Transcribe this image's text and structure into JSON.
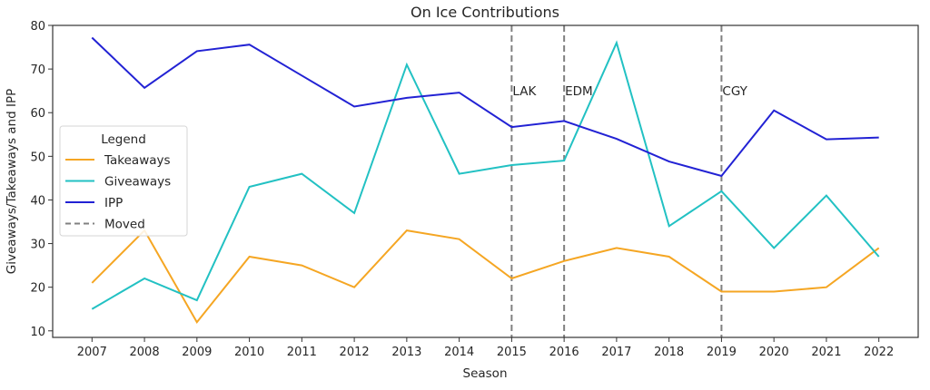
{
  "chart_data": {
    "type": "line",
    "title": "On Ice Contributions",
    "xlabel": "Season",
    "ylabel": "Giveaways/Takeaways and IPP",
    "x": [
      2007,
      2008,
      2009,
      2010,
      2011,
      2012,
      2013,
      2014,
      2015,
      2016,
      2017,
      2018,
      2019,
      2020,
      2021,
      2022
    ],
    "xticks": [
      "2007",
      "2008",
      "2009",
      "2010",
      "2011",
      "2012",
      "2013",
      "2014",
      "2015",
      "2016",
      "2017",
      "2018",
      "2019",
      "2020",
      "2021",
      "2022"
    ],
    "ylim": [
      8.5,
      80
    ],
    "yticks": [
      10,
      20,
      30,
      40,
      50,
      60,
      70,
      80
    ],
    "grid": false,
    "series": [
      {
        "name": "Takeaways",
        "color": "#f5a623",
        "style": "solid",
        "values": [
          21,
          33,
          12,
          27,
          25,
          20,
          33,
          31,
          22,
          26,
          29,
          27,
          19,
          19,
          20,
          29
        ]
      },
      {
        "name": "Giveaways",
        "color": "#22c1c3",
        "style": "solid",
        "values": [
          15,
          22,
          17,
          43,
          46,
          37,
          71,
          46,
          48,
          49,
          76,
          34,
          42,
          29,
          41,
          27
        ]
      },
      {
        "name": "IPP",
        "color": "#2222d4",
        "style": "solid",
        "values": [
          77.2,
          65.7,
          74.1,
          75.6,
          68.5,
          61.4,
          63.4,
          64.6,
          56.7,
          58.1,
          54.0,
          48.8,
          45.5,
          60.5,
          53.9,
          54.3
        ]
      }
    ],
    "vlines": {
      "name": "Moved",
      "color": "#808080",
      "style": "dashed",
      "at": [
        2015,
        2016,
        2019
      ],
      "labels": [
        "LAK",
        "EDM",
        "CGY"
      ],
      "label_y": 65
    },
    "legend": {
      "title": "Legend",
      "placement": "center-left",
      "entries": [
        "Takeaways",
        "Giveaways",
        "IPP",
        "Moved"
      ]
    }
  }
}
